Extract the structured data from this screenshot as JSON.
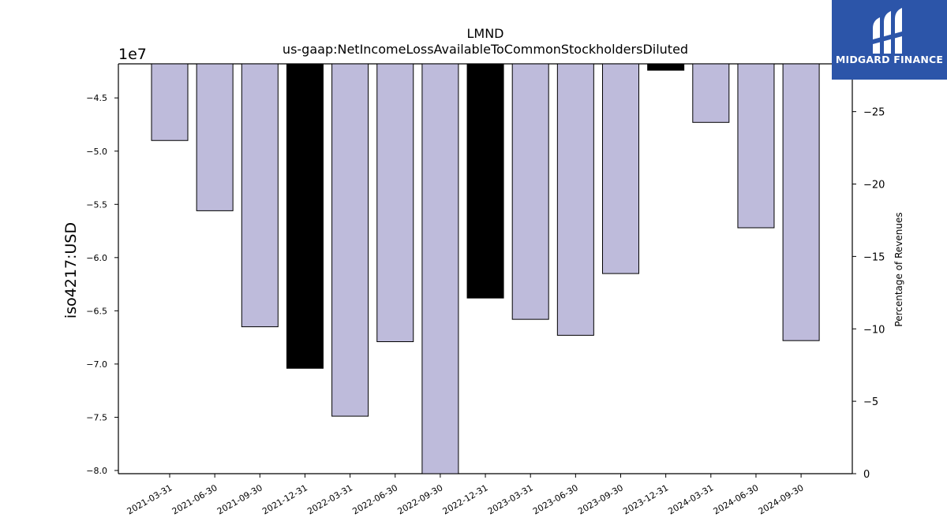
{
  "chart_data": {
    "type": "bar",
    "title": "LMND",
    "subtitle": "us-gaap:NetIncomeLossAvailableToCommonStockholdersDiluted",
    "ylabel": "iso4217:USD",
    "y_offset_label": "1e7",
    "y2label": "Percentage of Revenues",
    "ylim": [
      -80300000,
      -41800000
    ],
    "yticks": [
      -4.5,
      -5.0,
      -5.5,
      -6.0,
      -6.5,
      -7.0,
      -7.5,
      -8.0
    ],
    "y2lim": [
      0,
      28.3
    ],
    "y2ticks": [
      -25,
      -20,
      -15,
      -10,
      -5,
      0
    ],
    "categories": [
      "2021-03-31",
      "2021-06-30",
      "2021-09-30",
      "2021-12-31",
      "2022-03-31",
      "2022-06-30",
      "2022-09-30",
      "2022-12-31",
      "2023-03-31",
      "2023-06-30",
      "2023-09-30",
      "2023-12-31",
      "2024-03-31",
      "2024-06-30",
      "2024-09-30"
    ],
    "values": [
      -49000000,
      -55600000,
      -66500000,
      -70400000,
      -74900000,
      -67900000,
      -80300000,
      -63800000,
      -65800000,
      -67300000,
      -61500000,
      -42400000,
      -47300000,
      -57200000,
      -67800000
    ],
    "highlighted": [
      false,
      false,
      false,
      true,
      false,
      false,
      false,
      true,
      false,
      false,
      false,
      true,
      false,
      false,
      false
    ],
    "colors": {
      "bar": "#bebbdb",
      "highlight": "#000000",
      "edge": "#000000"
    },
    "grid": false
  },
  "logo": {
    "text": "MIDGARD FINANCE"
  }
}
